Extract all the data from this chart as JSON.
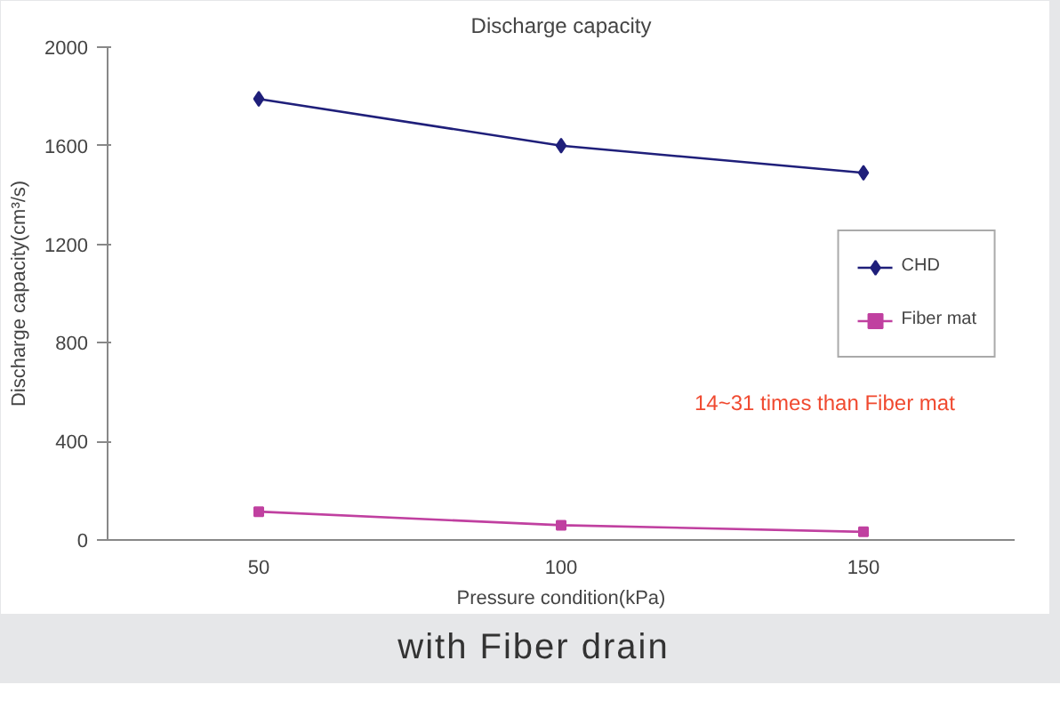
{
  "chart_data": {
    "type": "line",
    "title": "Discharge capacity",
    "xlabel": "Pressure condition(kPa)",
    "ylabel": "Discharge capacity(cm³/s)",
    "categories": [
      "50",
      "100",
      "150"
    ],
    "series": [
      {
        "name": "CHD",
        "color": "#1f1f7a",
        "values": [
          1790,
          1600,
          1490
        ],
        "marker": "diamond"
      },
      {
        "name": "Fiber mat",
        "color": "#c040a0",
        "values": [
          115,
          60,
          33
        ],
        "marker": "square"
      }
    ],
    "ylim": [
      0,
      2000
    ],
    "yticks": [
      0,
      400,
      800,
      1200,
      1600,
      2000
    ],
    "grid": false,
    "legend": "right",
    "line_style": "solid",
    "annotations": [
      "14~31 times than Fiber mat",
      "with Fiber drain"
    ]
  }
}
